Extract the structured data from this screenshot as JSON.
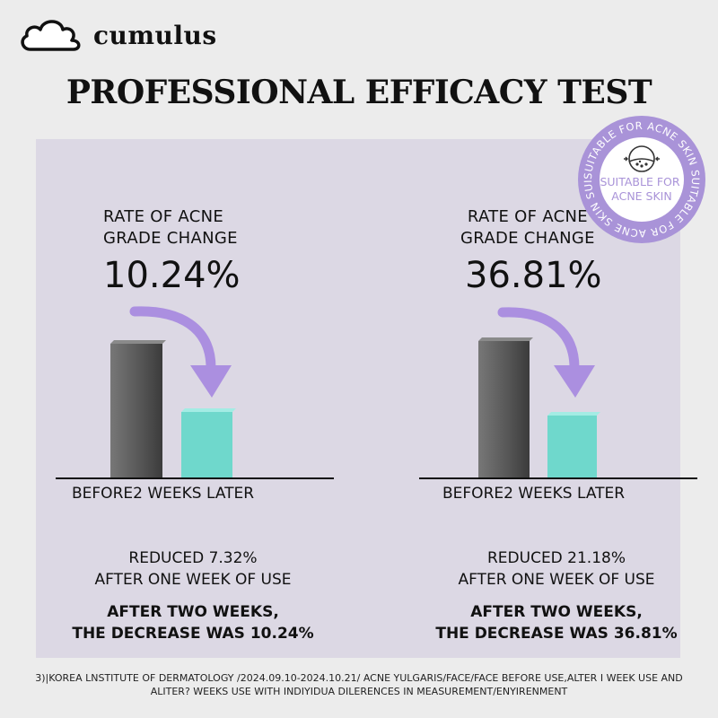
{
  "brand": {
    "name": "cumulus"
  },
  "title": "PROFESSIONAL EFFICACY TEST",
  "badge": {
    "center_text": "SUITABLE FOR\nACNE SKIN",
    "ring_text": "SUITABLE FOR ACNE SKIN SUITABLE FOR ACNE SKIN SUITABLE FOR ACNE SKIN"
  },
  "panels": [
    {
      "rate_label": "RATE OF ACNE\nGRADE CHANGE",
      "rate_value": "10.24%",
      "axis_label": "BEFORE2 WEEKS LATER",
      "reduced_note": "REDUCED 7.32%\nAFTER ONE WEEK OF USE",
      "bold_note": "AFTER TWO WEEKS,\nTHE DECREASE WAS 10.24%"
    },
    {
      "rate_label": "RATE OF ACNE\nGRADE CHANGE",
      "rate_value": "36.81%",
      "axis_label": "BEFORE2 WEEKS LATER",
      "reduced_note": "REDUCED 21.18%\nAFTER ONE WEEK OF USE",
      "bold_note": "AFTER TWO WEEKS,\nTHE DECREASE WAS 36.81%"
    }
  ],
  "footnote": "3)|KOREA LNSTITUTE OF DERMATOLOGY /2024.09.10-2024.10.21/ ACNE YULGARIS/FACE/FACE BEFORE USE,ALTER I WEEK USE AND\nALITER? WEEKS USE WITH INDIYIDUA DILERENCES IN MEASUREMENT/ENYIRENMENT",
  "colors": {
    "background": "#ececec",
    "panel": "#dcd8e4",
    "before_bar": "#5c5c5c",
    "after_bar": "#6fd8cc",
    "arrow": "#ab8fe0",
    "badge": "#a993d8"
  }
}
